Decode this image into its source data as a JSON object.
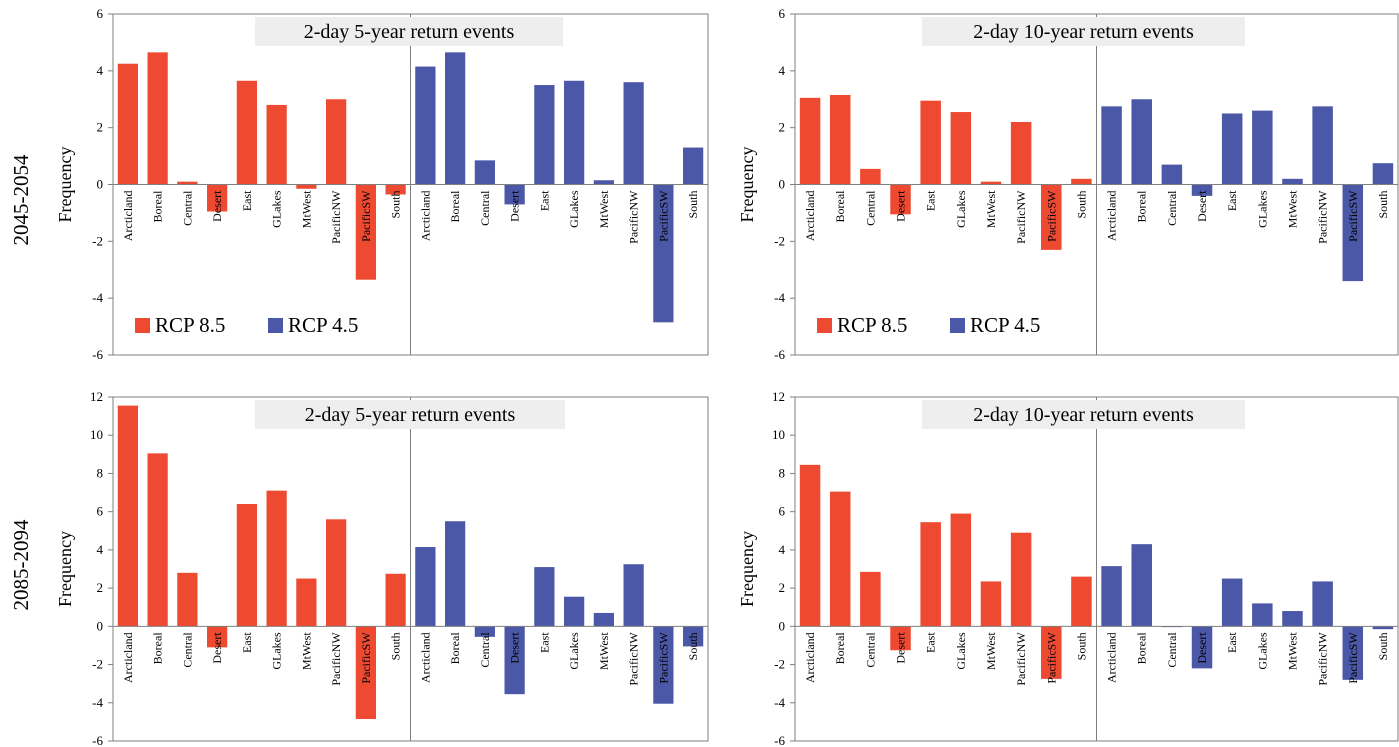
{
  "row_labels": [
    "2045-2054",
    "2085-2094"
  ],
  "legend": [
    {
      "label": "RCP 8.5",
      "color": "#ee4a32"
    },
    {
      "label": "RCP 4.5",
      "color": "#4b57a7"
    }
  ],
  "chart_data": [
    {
      "type": "bar",
      "title": "2-day 5-year return events",
      "ylabel": "Frequency",
      "ylim": [
        -6,
        6
      ],
      "yticks": [
        -6,
        -4,
        -2,
        0,
        2,
        4,
        6
      ],
      "categories": [
        "Arcticland",
        "Boreal",
        "Central",
        "Desert",
        "East",
        "GLakes",
        "MtWest",
        "PacificNW",
        "PacificSW",
        "South"
      ],
      "series": [
        {
          "name": "RCP 8.5",
          "color": "#ee4a32",
          "values": [
            4.25,
            4.65,
            0.1,
            -0.95,
            3.65,
            2.8,
            -0.15,
            3.0,
            -3.35,
            -0.35
          ]
        },
        {
          "name": "RCP 4.5",
          "color": "#4b57a7",
          "values": [
            4.15,
            4.65,
            0.85,
            -0.7,
            3.5,
            3.65,
            0.15,
            3.6,
            -4.85,
            1.3
          ]
        }
      ],
      "legend_shown": true
    },
    {
      "type": "bar",
      "title": "2-day 10-year return events",
      "ylabel": "Frequency",
      "ylim": [
        -6,
        6
      ],
      "yticks": [
        -6,
        -4,
        -2,
        0,
        2,
        4,
        6
      ],
      "categories": [
        "Arcticland",
        "Boreal",
        "Central",
        "Desert",
        "East",
        "GLakes",
        "MtWest",
        "PacificNW",
        "PacificSW",
        "South"
      ],
      "series": [
        {
          "name": "RCP 8.5",
          "color": "#ee4a32",
          "values": [
            3.05,
            3.15,
            0.55,
            -1.05,
            2.95,
            2.55,
            0.1,
            2.2,
            -2.3,
            0.2
          ]
        },
        {
          "name": "RCP 4.5",
          "color": "#4b57a7",
          "values": [
            2.75,
            3.0,
            0.7,
            -0.4,
            2.5,
            2.6,
            0.2,
            2.75,
            -3.4,
            0.75
          ]
        }
      ],
      "legend_shown": true
    },
    {
      "type": "bar",
      "title": "2-day 5-year return events",
      "ylabel": "Frequency",
      "ylim": [
        -6,
        12
      ],
      "yticks": [
        -6,
        -4,
        -2,
        0,
        2,
        4,
        6,
        8,
        10,
        12
      ],
      "categories": [
        "Arcticland",
        "Boreal",
        "Central",
        "Desert",
        "East",
        "GLakes",
        "MtWest",
        "PacificNW",
        "PacificSW",
        "South"
      ],
      "series": [
        {
          "name": "RCP 8.5",
          "color": "#ee4a32",
          "values": [
            11.55,
            9.05,
            2.8,
            -1.1,
            6.4,
            7.1,
            2.5,
            5.6,
            -4.85,
            2.75
          ]
        },
        {
          "name": "RCP 4.5",
          "color": "#4b57a7",
          "values": [
            4.15,
            5.5,
            -0.55,
            -3.55,
            3.1,
            1.55,
            0.7,
            3.25,
            -4.05,
            -1.05
          ]
        }
      ],
      "legend_shown": false
    },
    {
      "type": "bar",
      "title": "2-day 10-year return events",
      "ylabel": "Frequency",
      "ylim": [
        -6,
        12
      ],
      "yticks": [
        -6,
        -4,
        -2,
        0,
        2,
        4,
        6,
        8,
        10,
        12
      ],
      "categories": [
        "Arcticland",
        "Boreal",
        "Central",
        "Desert",
        "East",
        "GLakes",
        "MtWest",
        "PacificNW",
        "PacificSW",
        "South"
      ],
      "series": [
        {
          "name": "RCP 8.5",
          "color": "#ee4a32",
          "values": [
            8.45,
            7.05,
            2.85,
            -1.25,
            5.45,
            5.9,
            2.35,
            4.9,
            -2.75,
            2.6
          ]
        },
        {
          "name": "RCP 4.5",
          "color": "#4b57a7",
          "values": [
            3.15,
            4.3,
            0.0,
            -2.2,
            2.5,
            1.2,
            0.8,
            2.35,
            -2.8,
            -0.15
          ]
        }
      ],
      "legend_shown": false
    }
  ]
}
